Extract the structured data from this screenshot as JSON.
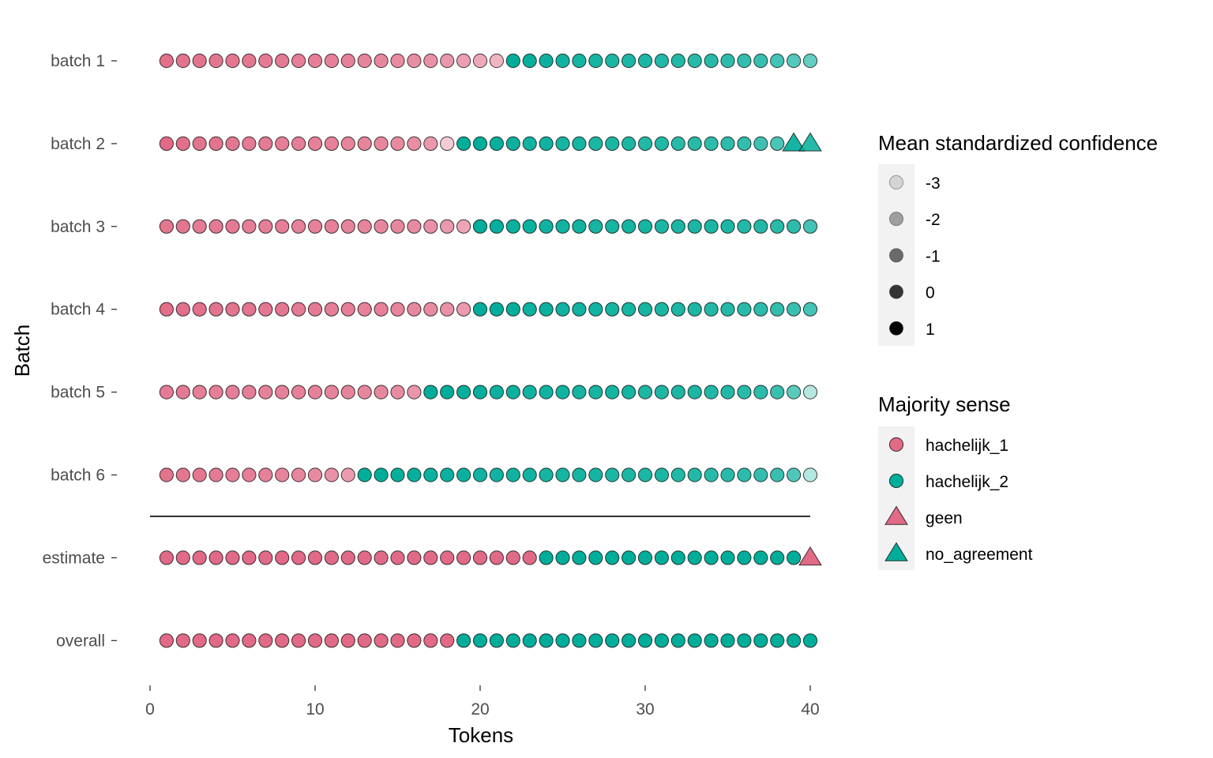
{
  "chart_data": {
    "type": "scatter",
    "xlabel": "Tokens",
    "ylabel": "Batch",
    "xlim": [
      0,
      40
    ],
    "x_ticks": [
      0,
      10,
      20,
      30,
      40
    ],
    "x_tick_labels": [
      "0",
      "10",
      "20",
      "30",
      "40"
    ],
    "rows": [
      {
        "label": "batch 1",
        "senses": [
          "hachelijk_1",
          "hachelijk_1",
          "hachelijk_1",
          "hachelijk_1",
          "hachelijk_1",
          "hachelijk_1",
          "hachelijk_1",
          "hachelijk_1",
          "hachelijk_1",
          "hachelijk_1",
          "hachelijk_1",
          "hachelijk_1",
          "hachelijk_1",
          "hachelijk_1",
          "hachelijk_1",
          "hachelijk_1",
          "hachelijk_1",
          "hachelijk_1",
          "hachelijk_1",
          "hachelijk_1",
          "hachelijk_1",
          "hachelijk_2",
          "hachelijk_2",
          "hachelijk_2",
          "hachelijk_2",
          "hachelijk_2",
          "hachelijk_2",
          "hachelijk_2",
          "hachelijk_2",
          "hachelijk_2",
          "hachelijk_2",
          "hachelijk_2",
          "hachelijk_2",
          "hachelijk_2",
          "hachelijk_2",
          "hachelijk_2",
          "hachelijk_2",
          "hachelijk_2",
          "hachelijk_2",
          "hachelijk_2"
        ],
        "confidence": [
          0.8,
          0.7,
          0.7,
          0.6,
          0.6,
          0.6,
          0.5,
          0.5,
          0.4,
          0.4,
          0.3,
          0.3,
          0.2,
          0.1,
          0.0,
          -0.1,
          -0.2,
          -0.4,
          -0.6,
          -0.9,
          -1.3,
          1.0,
          0.9,
          0.8,
          0.7,
          0.6,
          0.6,
          0.5,
          0.5,
          0.5,
          0.4,
          0.4,
          0.3,
          0.3,
          0.2,
          0.1,
          0.0,
          -0.2,
          -0.5,
          -0.8
        ]
      },
      {
        "label": "batch 2",
        "senses": [
          "hachelijk_1",
          "hachelijk_1",
          "hachelijk_1",
          "hachelijk_1",
          "hachelijk_1",
          "hachelijk_1",
          "hachelijk_1",
          "hachelijk_1",
          "hachelijk_1",
          "hachelijk_1",
          "hachelijk_1",
          "hachelijk_1",
          "hachelijk_1",
          "hachelijk_1",
          "hachelijk_1",
          "hachelijk_1",
          "hachelijk_1",
          "hachelijk_1",
          "hachelijk_2",
          "hachelijk_2",
          "hachelijk_2",
          "hachelijk_2",
          "hachelijk_2",
          "hachelijk_2",
          "hachelijk_2",
          "hachelijk_2",
          "hachelijk_2",
          "hachelijk_2",
          "hachelijk_2",
          "hachelijk_2",
          "hachelijk_2",
          "hachelijk_2",
          "hachelijk_2",
          "hachelijk_2",
          "hachelijk_2",
          "hachelijk_2",
          "hachelijk_2",
          "hachelijk_2",
          "no_agreement",
          "no_agreement"
        ],
        "confidence": [
          1.0,
          0.8,
          0.7,
          0.7,
          0.6,
          0.5,
          0.5,
          0.4,
          0.4,
          0.3,
          0.3,
          0.2,
          0.2,
          0.1,
          0.0,
          -0.1,
          -0.4,
          -2.0,
          1.0,
          1.0,
          0.9,
          0.8,
          0.7,
          0.7,
          0.6,
          0.6,
          0.5,
          0.5,
          0.5,
          0.4,
          0.4,
          0.3,
          0.3,
          0.2,
          0.2,
          0.1,
          -0.1,
          -0.3,
          0.6,
          0.3
        ]
      },
      {
        "label": "batch 3",
        "senses": [
          "hachelijk_1",
          "hachelijk_1",
          "hachelijk_1",
          "hachelijk_1",
          "hachelijk_1",
          "hachelijk_1",
          "hachelijk_1",
          "hachelijk_1",
          "hachelijk_1",
          "hachelijk_1",
          "hachelijk_1",
          "hachelijk_1",
          "hachelijk_1",
          "hachelijk_1",
          "hachelijk_1",
          "hachelijk_1",
          "hachelijk_1",
          "hachelijk_1",
          "hachelijk_1",
          "hachelijk_2",
          "hachelijk_2",
          "hachelijk_2",
          "hachelijk_2",
          "hachelijk_2",
          "hachelijk_2",
          "hachelijk_2",
          "hachelijk_2",
          "hachelijk_2",
          "hachelijk_2",
          "hachelijk_2",
          "hachelijk_2",
          "hachelijk_2",
          "hachelijk_2",
          "hachelijk_2",
          "hachelijk_2",
          "hachelijk_2",
          "hachelijk_2",
          "hachelijk_2",
          "hachelijk_2",
          "hachelijk_2"
        ],
        "confidence": [
          0.6,
          0.6,
          0.5,
          0.5,
          0.5,
          0.4,
          0.4,
          0.4,
          0.3,
          0.3,
          0.3,
          0.2,
          0.2,
          0.1,
          0.1,
          0.0,
          -0.2,
          -0.4,
          -0.8,
          1.0,
          0.9,
          0.8,
          0.8,
          0.7,
          0.7,
          0.7,
          0.6,
          0.6,
          0.6,
          0.6,
          0.5,
          0.5,
          0.5,
          0.5,
          0.5,
          0.4,
          0.4,
          0.3,
          0.2,
          -0.2
        ]
      },
      {
        "label": "batch 4",
        "senses": [
          "hachelijk_1",
          "hachelijk_1",
          "hachelijk_1",
          "hachelijk_1",
          "hachelijk_1",
          "hachelijk_1",
          "hachelijk_1",
          "hachelijk_1",
          "hachelijk_1",
          "hachelijk_1",
          "hachelijk_1",
          "hachelijk_1",
          "hachelijk_1",
          "hachelijk_1",
          "hachelijk_1",
          "hachelijk_1",
          "hachelijk_1",
          "hachelijk_1",
          "hachelijk_1",
          "hachelijk_2",
          "hachelijk_2",
          "hachelijk_2",
          "hachelijk_2",
          "hachelijk_2",
          "hachelijk_2",
          "hachelijk_2",
          "hachelijk_2",
          "hachelijk_2",
          "hachelijk_2",
          "hachelijk_2",
          "hachelijk_2",
          "hachelijk_2",
          "hachelijk_2",
          "hachelijk_2",
          "hachelijk_2",
          "hachelijk_2",
          "hachelijk_2",
          "hachelijk_2",
          "hachelijk_2",
          "hachelijk_2"
        ],
        "confidence": [
          0.9,
          0.8,
          0.8,
          0.7,
          0.7,
          0.7,
          0.6,
          0.6,
          0.5,
          0.5,
          0.4,
          0.4,
          0.3,
          0.3,
          0.2,
          0.1,
          0.0,
          -0.2,
          -0.5,
          1.0,
          1.0,
          0.9,
          0.8,
          0.8,
          0.7,
          0.7,
          0.7,
          0.6,
          0.6,
          0.6,
          0.5,
          0.5,
          0.5,
          0.4,
          0.4,
          0.3,
          0.2,
          0.1,
          0.0,
          -0.2
        ]
      },
      {
        "label": "batch 5",
        "senses": [
          "hachelijk_1",
          "hachelijk_1",
          "hachelijk_1",
          "hachelijk_1",
          "hachelijk_1",
          "hachelijk_1",
          "hachelijk_1",
          "hachelijk_1",
          "hachelijk_1",
          "hachelijk_1",
          "hachelijk_1",
          "hachelijk_1",
          "hachelijk_1",
          "hachelijk_1",
          "hachelijk_1",
          "hachelijk_1",
          "hachelijk_2",
          "hachelijk_2",
          "hachelijk_2",
          "hachelijk_2",
          "hachelijk_2",
          "hachelijk_2",
          "hachelijk_2",
          "hachelijk_2",
          "hachelijk_2",
          "hachelijk_2",
          "hachelijk_2",
          "hachelijk_2",
          "hachelijk_2",
          "hachelijk_2",
          "hachelijk_2",
          "hachelijk_2",
          "hachelijk_2",
          "hachelijk_2",
          "hachelijk_2",
          "hachelijk_2",
          "hachelijk_2",
          "hachelijk_2",
          "hachelijk_2",
          "hachelijk_2"
        ],
        "confidence": [
          0.5,
          0.5,
          0.4,
          0.4,
          0.4,
          0.4,
          0.3,
          0.3,
          0.3,
          0.3,
          0.2,
          0.2,
          0.1,
          0.1,
          0.0,
          -0.3,
          1.0,
          1.0,
          0.9,
          0.9,
          0.8,
          0.8,
          0.7,
          0.7,
          0.7,
          0.6,
          0.6,
          0.6,
          0.6,
          0.5,
          0.5,
          0.5,
          0.5,
          0.4,
          0.4,
          0.3,
          0.2,
          0.0,
          -0.6,
          -2.2
        ]
      },
      {
        "label": "batch 6",
        "senses": [
          "hachelijk_1",
          "hachelijk_1",
          "hachelijk_1",
          "hachelijk_1",
          "hachelijk_1",
          "hachelijk_1",
          "hachelijk_1",
          "hachelijk_1",
          "hachelijk_1",
          "hachelijk_1",
          "hachelijk_1",
          "hachelijk_1",
          "hachelijk_2",
          "hachelijk_2",
          "hachelijk_2",
          "hachelijk_2",
          "hachelijk_2",
          "hachelijk_2",
          "hachelijk_2",
          "hachelijk_2",
          "hachelijk_2",
          "hachelijk_2",
          "hachelijk_2",
          "hachelijk_2",
          "hachelijk_2",
          "hachelijk_2",
          "hachelijk_2",
          "hachelijk_2",
          "hachelijk_2",
          "hachelijk_2",
          "hachelijk_2",
          "hachelijk_2",
          "hachelijk_2",
          "hachelijk_2",
          "hachelijk_2",
          "hachelijk_2",
          "hachelijk_2",
          "hachelijk_2",
          "hachelijk_2",
          "hachelijk_2"
        ],
        "confidence": [
          0.7,
          0.6,
          0.6,
          0.5,
          0.4,
          0.4,
          0.3,
          0.2,
          0.1,
          0.0,
          -0.2,
          -0.5,
          1.0,
          1.0,
          0.9,
          0.9,
          0.8,
          0.8,
          0.8,
          0.7,
          0.7,
          0.7,
          0.7,
          0.6,
          0.6,
          0.6,
          0.6,
          0.5,
          0.5,
          0.5,
          0.5,
          0.4,
          0.4,
          0.3,
          0.3,
          0.2,
          0.1,
          0.0,
          -0.4,
          -2.2
        ]
      },
      {
        "label": "estimate",
        "senses": [
          "hachelijk_1",
          "hachelijk_1",
          "hachelijk_1",
          "hachelijk_1",
          "hachelijk_1",
          "hachelijk_1",
          "hachelijk_1",
          "hachelijk_1",
          "hachelijk_1",
          "hachelijk_1",
          "hachelijk_1",
          "hachelijk_1",
          "hachelijk_1",
          "hachelijk_1",
          "hachelijk_1",
          "hachelijk_1",
          "hachelijk_1",
          "hachelijk_1",
          "hachelijk_1",
          "hachelijk_1",
          "hachelijk_1",
          "hachelijk_1",
          "hachelijk_1",
          "hachelijk_2",
          "hachelijk_2",
          "hachelijk_2",
          "hachelijk_2",
          "hachelijk_2",
          "hachelijk_2",
          "hachelijk_2",
          "hachelijk_2",
          "hachelijk_2",
          "hachelijk_2",
          "hachelijk_2",
          "hachelijk_2",
          "hachelijk_2",
          "hachelijk_2",
          "hachelijk_2",
          "hachelijk_2",
          "geen"
        ],
        "confidence": [
          1,
          1,
          1,
          1,
          1,
          1,
          1,
          1,
          1,
          1,
          1,
          1,
          1,
          1,
          1,
          1,
          1,
          1,
          1,
          1,
          1,
          1,
          1,
          1,
          1,
          1,
          1,
          1,
          1,
          1,
          1,
          1,
          1,
          1,
          1,
          1,
          1,
          1,
          1,
          1
        ]
      },
      {
        "label": "overall",
        "senses": [
          "hachelijk_1",
          "hachelijk_1",
          "hachelijk_1",
          "hachelijk_1",
          "hachelijk_1",
          "hachelijk_1",
          "hachelijk_1",
          "hachelijk_1",
          "hachelijk_1",
          "hachelijk_1",
          "hachelijk_1",
          "hachelijk_1",
          "hachelijk_1",
          "hachelijk_1",
          "hachelijk_1",
          "hachelijk_1",
          "hachelijk_1",
          "hachelijk_1",
          "hachelijk_2",
          "hachelijk_2",
          "hachelijk_2",
          "hachelijk_2",
          "hachelijk_2",
          "hachelijk_2",
          "hachelijk_2",
          "hachelijk_2",
          "hachelijk_2",
          "hachelijk_2",
          "hachelijk_2",
          "hachelijk_2",
          "hachelijk_2",
          "hachelijk_2",
          "hachelijk_2",
          "hachelijk_2",
          "hachelijk_2",
          "hachelijk_2",
          "hachelijk_2",
          "hachelijk_2",
          "hachelijk_2",
          "hachelijk_2"
        ],
        "confidence": [
          1,
          1,
          1,
          1,
          1,
          1,
          1,
          1,
          1,
          1,
          1,
          1,
          1,
          1,
          1,
          1,
          1,
          1,
          1,
          1,
          1,
          1,
          1,
          1,
          1,
          1,
          1,
          1,
          1,
          1,
          1,
          1,
          1,
          1,
          1,
          1,
          1,
          1,
          1,
          1
        ]
      }
    ],
    "legend_confidence": {
      "title": "Mean standardized confidence",
      "entries": [
        "-3",
        "-2",
        "-1",
        "0",
        "1"
      ],
      "values": [
        -3,
        -2,
        -1,
        0,
        1
      ]
    },
    "legend_sense": {
      "title": "Majority sense",
      "entries": [
        {
          "label": "hachelijk_1",
          "shape": "circle",
          "color": "#E16A86"
        },
        {
          "label": "hachelijk_2",
          "shape": "circle",
          "color": "#00AD9A"
        },
        {
          "label": "geen",
          "shape": "triangle",
          "color": "#E16A86"
        },
        {
          "label": "no_agreement",
          "shape": "triangle",
          "color": "#00AD9A"
        }
      ]
    },
    "colors": {
      "hachelijk_1": "#E16A86",
      "hachelijk_2": "#00AD9A",
      "geen": "#E16A86",
      "no_agreement": "#00AD9A",
      "separator": "#000000",
      "legend_key_bg": "#F2F2F2"
    },
    "separator_between": [
      "batch 6",
      "estimate"
    ],
    "grid": false,
    "legend_position": "right"
  }
}
